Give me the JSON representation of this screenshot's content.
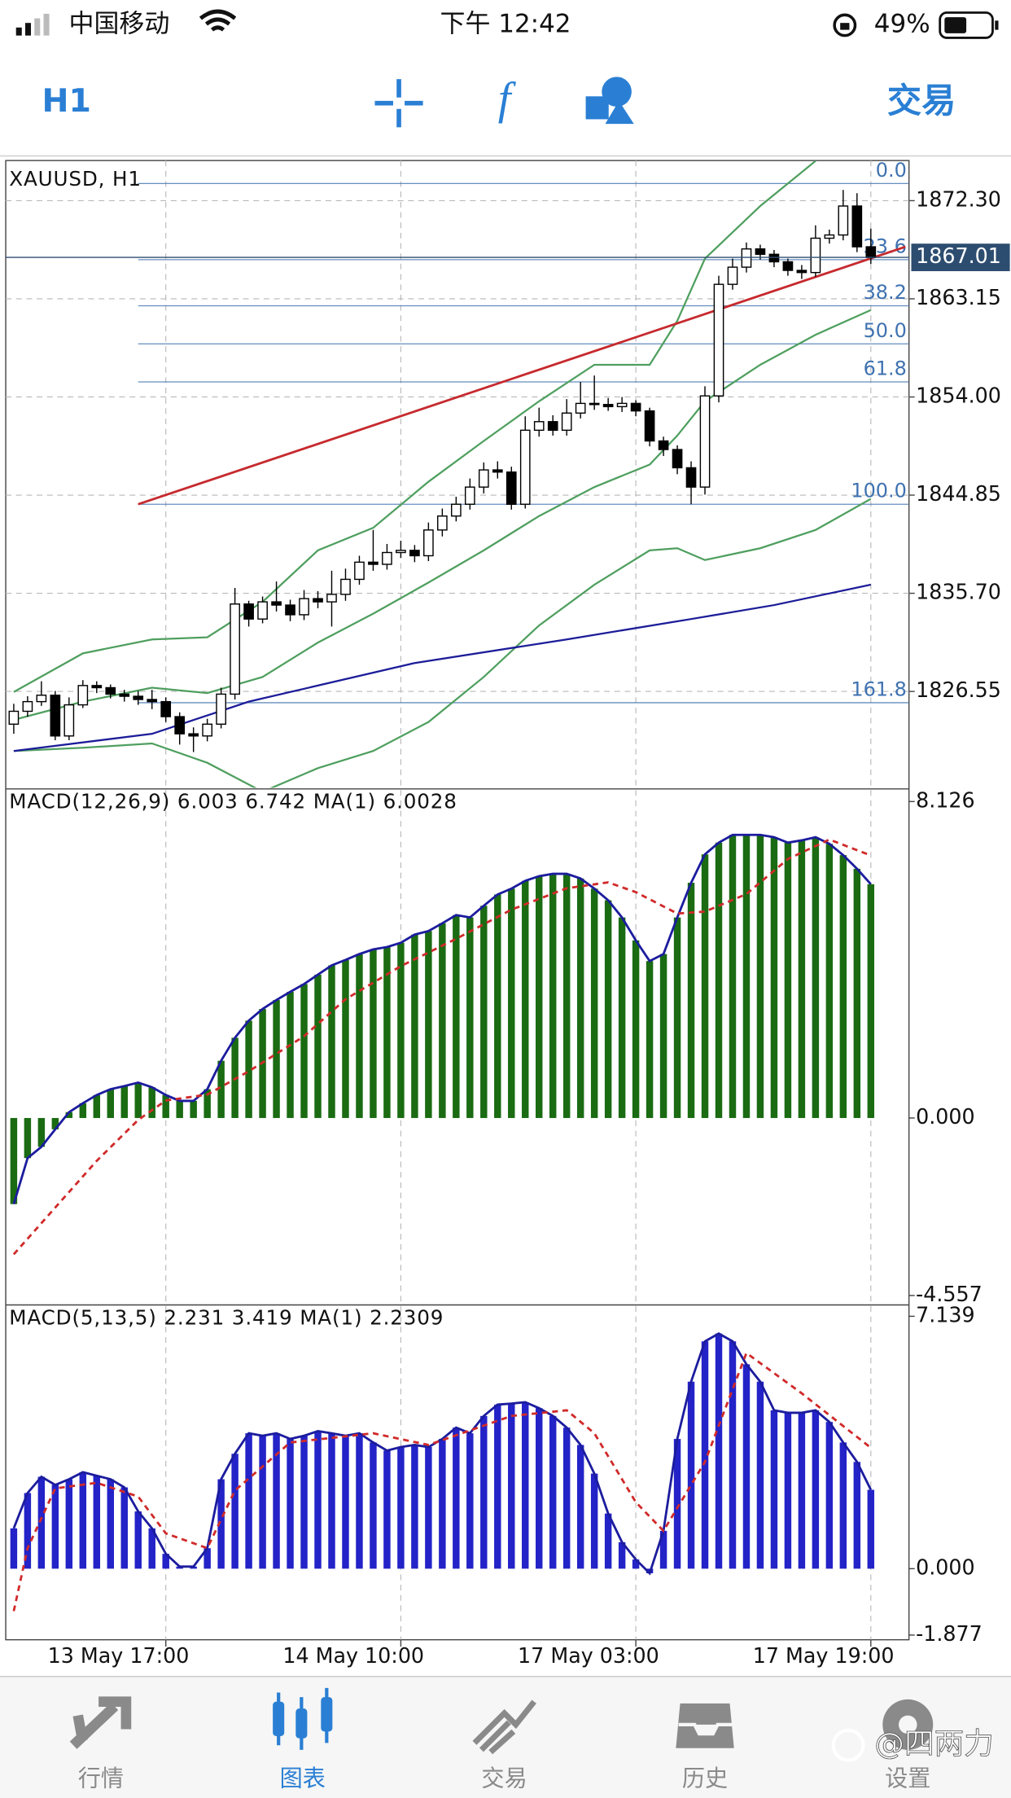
{
  "status_bar": {
    "carrier": "中国移动",
    "time": "下午 12:42",
    "battery": "49%"
  },
  "toolbar": {
    "timeframe": "H1",
    "trade": "交易"
  },
  "chart_data": [
    {
      "type": "candlestick",
      "title": "XAUUSD, H1",
      "categories": [
        null,
        null,
        null,
        null,
        null,
        null,
        null,
        null,
        null,
        null,
        null,
        "13 May 17:00",
        null,
        null,
        null,
        null,
        null,
        null,
        null,
        null,
        null,
        null,
        null,
        null,
        null,
        null,
        null,
        null,
        "14 May 10:00",
        null,
        null,
        null,
        null,
        null,
        null,
        null,
        null,
        null,
        null,
        null,
        null,
        null,
        null,
        null,
        null,
        "17 May 03:00",
        null,
        null,
        null,
        null,
        null,
        null,
        null,
        null,
        null,
        null,
        null,
        null,
        null,
        null,
        null,
        null,
        "17 May 19:00"
      ],
      "open": [
        1823.5,
        1824.7,
        1825.6,
        1826.2,
        1822.4,
        1825.3,
        1827.1,
        1826.9,
        1826.3,
        1826.1,
        1825.8,
        1825.6,
        1824.2,
        1822.6,
        1822.4,
        1823.5,
        1826.3,
        1834.7,
        1833.3,
        1834.9,
        1834.6,
        1833.7,
        1835.2,
        1834.9,
        1835.6,
        1837.0,
        1838.6,
        1838.4,
        1839.5,
        1839.7,
        1839.2,
        1841.6,
        1842.9,
        1844.0,
        1845.6,
        1847.2,
        1847.0,
        1844.0,
        1850.9,
        1851.7,
        1850.9,
        1852.5,
        1853.4,
        1853.3,
        1853.1,
        1853.4,
        1852.7,
        1849.9,
        1849.1,
        1847.4,
        1845.6,
        1854.1,
        1864.5,
        1866.1,
        1867.8,
        1867.3,
        1866.6,
        1865.8,
        1865.6,
        1868.8,
        1869.1,
        1871.8,
        1868.0
      ],
      "high": [
        1825.4,
        1826.1,
        1827.5,
        1826.6,
        1826.0,
        1827.6,
        1827.5,
        1827.2,
        1826.7,
        1826.6,
        1826.7,
        1826.0,
        1824.6,
        1823.2,
        1824.0,
        1826.9,
        1836.2,
        1835.0,
        1835.4,
        1836.8,
        1835.1,
        1836.0,
        1835.9,
        1837.8,
        1838.0,
        1839.2,
        1841.6,
        1840.3,
        1840.6,
        1840.2,
        1842.3,
        1843.6,
        1844.7,
        1846.4,
        1847.9,
        1848.0,
        1847.5,
        1852.2,
        1853.0,
        1852.3,
        1853.8,
        1855.4,
        1856.0,
        1853.9,
        1854.0,
        1853.7,
        1853.0,
        1850.3,
        1849.5,
        1848.0,
        1855.0,
        1865.3,
        1866.9,
        1868.4,
        1868.2,
        1867.7,
        1866.9,
        1866.3,
        1870.0,
        1869.6,
        1873.3,
        1873.0,
        1869.7
      ],
      "low": [
        1822.6,
        1824.2,
        1825.2,
        1822.0,
        1822.0,
        1825.0,
        1826.4,
        1825.9,
        1825.6,
        1825.3,
        1824.9,
        1823.7,
        1821.6,
        1820.9,
        1821.9,
        1823.1,
        1825.8,
        1832.6,
        1832.9,
        1834.0,
        1833.1,
        1833.2,
        1834.3,
        1832.6,
        1835.0,
        1836.5,
        1837.8,
        1837.9,
        1839.0,
        1838.6,
        1838.7,
        1841.0,
        1842.4,
        1843.5,
        1845.0,
        1846.4,
        1843.5,
        1843.6,
        1850.3,
        1850.4,
        1850.4,
        1852.0,
        1852.8,
        1852.7,
        1852.6,
        1852.2,
        1849.4,
        1848.5,
        1846.8,
        1844.0,
        1844.9,
        1853.5,
        1864.0,
        1865.6,
        1866.8,
        1866.1,
        1865.3,
        1865.0,
        1865.2,
        1868.3,
        1868.6,
        1867.5,
        1866.4
      ],
      "close": [
        1824.7,
        1825.6,
        1826.2,
        1822.4,
        1825.3,
        1827.1,
        1826.9,
        1826.3,
        1826.1,
        1825.8,
        1825.6,
        1824.2,
        1822.6,
        1822.4,
        1823.5,
        1826.3,
        1834.7,
        1833.3,
        1834.9,
        1834.6,
        1833.7,
        1835.2,
        1834.9,
        1835.6,
        1837.0,
        1838.6,
        1838.4,
        1839.5,
        1839.7,
        1839.2,
        1841.6,
        1842.9,
        1844.0,
        1845.6,
        1847.2,
        1847.0,
        1844.0,
        1850.9,
        1851.7,
        1850.9,
        1852.5,
        1853.4,
        1853.3,
        1853.1,
        1853.4,
        1852.7,
        1849.9,
        1849.1,
        1847.4,
        1845.6,
        1854.1,
        1864.5,
        1866.1,
        1867.8,
        1867.3,
        1866.6,
        1865.8,
        1865.6,
        1868.8,
        1869.1,
        1871.8,
        1868.0,
        1867.0
      ],
      "up_color": "#ffffff",
      "down_color": "#000000",
      "overlays": [
        {
          "color": "#4f9f5f",
          "x": [
            0,
            5,
            10,
            14,
            18,
            22,
            26,
            30,
            34,
            38,
            42,
            46,
            48,
            50,
            54,
            58
          ],
          "values": [
            1826.5,
            1830.1,
            1831.4,
            1831.6,
            1834.9,
            1839.7,
            1841.8,
            1846.1,
            1849.9,
            1853.6,
            1857.0,
            1857.0,
            1861.1,
            1866.9,
            1871.8,
            1876.0
          ]
        },
        {
          "color": "#4f9f5f",
          "x": [
            0,
            5,
            10,
            14,
            18,
            22,
            26,
            30,
            34,
            38,
            42,
            46,
            48,
            50,
            54,
            58,
            62
          ],
          "values": [
            1823.9,
            1825.6,
            1826.9,
            1826.4,
            1827.9,
            1831.1,
            1833.8,
            1836.7,
            1839.7,
            1842.9,
            1845.6,
            1847.7,
            1850.4,
            1853.6,
            1857.0,
            1859.8,
            1862.1
          ]
        },
        {
          "color": "#4f9f5f",
          "x": [
            0,
            5,
            10,
            14,
            18,
            22,
            26,
            30,
            34,
            38,
            42,
            46,
            48,
            50,
            54,
            58,
            62
          ],
          "values": [
            1821.0,
            1821.3,
            1821.7,
            1819.9,
            1817.2,
            1819.4,
            1821.0,
            1823.7,
            1827.9,
            1832.7,
            1836.5,
            1839.7,
            1839.9,
            1838.8,
            1839.9,
            1841.6,
            1844.5
          ]
        },
        {
          "color": "#1c1c99",
          "x": [
            0,
            10,
            17,
            29,
            40,
            49,
            55,
            62
          ],
          "values": [
            1821.0,
            1822.6,
            1825.6,
            1829.2,
            1831.4,
            1833.3,
            1834.6,
            1836.5
          ]
        },
        {
          "color": "#c62a2e",
          "x": [
            9,
            64.5
          ],
          "values": [
            1844.0,
            1868.0
          ]
        }
      ],
      "fib_labels": [
        "0.0",
        "23.6",
        "38.2",
        "50.0",
        "61.8",
        "100.0",
        "161.8"
      ],
      "fib_values": [
        1873.9,
        1866.8,
        1862.5,
        1858.95,
        1855.4,
        1844.0,
        1825.5
      ],
      "fib_color": "#3f72b0",
      "current_price": 1867.01,
      "ylim": [
        1817.57,
        1876.04
      ],
      "yticks": [
        {
          "value": 1872.3,
          "label": "1872.30"
        },
        1863.15,
        {
          "value": 1854,
          "label": "1854.00"
        },
        1844.85,
        {
          "value": 1835.7,
          "label": "1835.70"
        },
        1826.55
      ],
      "grid": true
    },
    {
      "type": "bar",
      "title": "MACD(12,26,9) 6.003 6.742 MA(1) 6.0028",
      "histogram": {
        "color": "#1a6b12",
        "line_color": "#1c1c9e",
        "values": [
          -2.21,
          -1.03,
          -0.74,
          -0.29,
          0.15,
          0.38,
          0.59,
          0.74,
          0.82,
          0.91,
          0.79,
          0.59,
          0.44,
          0.44,
          0.74,
          1.47,
          2.06,
          2.5,
          2.8,
          3.03,
          3.24,
          3.44,
          3.68,
          3.92,
          4.06,
          4.21,
          4.33,
          4.39,
          4.5,
          4.71,
          4.8,
          5.0,
          5.21,
          5.15,
          5.45,
          5.74,
          5.89,
          6.09,
          6.21,
          6.27,
          6.27,
          6.15,
          5.89,
          5.59,
          5.15,
          4.56,
          4.03,
          4.21,
          5.15,
          6.04,
          6.77,
          7.07,
          7.27,
          7.27,
          7.27,
          7.21,
          7.07,
          7.13,
          7.21,
          7.04,
          6.75,
          6.4,
          6.003
        ]
      },
      "signal": {
        "color": "#d02a2a",
        "x": [
          0,
          3,
          6,
          9,
          11,
          14,
          17,
          21,
          24,
          28,
          32,
          36,
          40,
          43,
          45,
          48,
          50,
          53,
          56,
          59,
          62
        ],
        "values": [
          -3.5,
          -2.3,
          -1.1,
          -0.05,
          0.45,
          0.6,
          1.2,
          2.1,
          3.05,
          3.9,
          4.6,
          5.35,
          5.9,
          6.05,
          5.8,
          5.25,
          5.3,
          5.75,
          6.65,
          7.15,
          6.742
        ]
      },
      "ylim": [
        -4.77,
        8.45
      ],
      "yticks": [
        8.126,
        {
          "value": 0,
          "label": "0.000"
        },
        -4.557
      ]
    },
    {
      "type": "bar",
      "title": "MACD(5,13,5) 2.231 3.419 MA(1) 2.2309",
      "histogram": {
        "color": "#2323c8",
        "line_color": "#1c1c9e",
        "values": [
          1.14,
          2.14,
          2.6,
          2.37,
          2.53,
          2.73,
          2.63,
          2.53,
          2.3,
          1.62,
          1.14,
          0.42,
          0.06,
          0.06,
          0.58,
          2.53,
          3.25,
          3.83,
          3.76,
          3.83,
          3.67,
          3.76,
          3.89,
          3.83,
          3.76,
          3.83,
          3.57,
          3.34,
          3.44,
          3.5,
          3.44,
          3.67,
          3.99,
          3.83,
          4.32,
          4.64,
          4.67,
          4.71,
          4.54,
          4.32,
          3.99,
          3.5,
          2.69,
          1.56,
          0.75,
          0.26,
          -0.13,
          1.07,
          3.67,
          5.29,
          6.43,
          6.65,
          6.43,
          5.78,
          5.29,
          4.48,
          4.41,
          4.41,
          4.48,
          4.15,
          3.57,
          3.02,
          2.231
        ]
      },
      "signal": {
        "color": "#d02a2a",
        "x": [
          0,
          1,
          3,
          6,
          9,
          11,
          14,
          16,
          20,
          26,
          30,
          36,
          40,
          42,
          45,
          47,
          50,
          53,
          57,
          62
        ],
        "values": [
          -1.2,
          0.58,
          2.27,
          2.43,
          2.04,
          1.0,
          0.58,
          2.21,
          3.57,
          3.83,
          3.5,
          4.32,
          4.48,
          3.83,
          1.88,
          1.07,
          3.02,
          6.1,
          4.96,
          3.419
        ]
      },
      "ylim": [
        -2.01,
        7.46
      ],
      "yticks": [
        7.139,
        {
          "value": 0,
          "label": "0.000"
        },
        -1.877
      ]
    }
  ],
  "tabs": [
    "行情",
    "图表",
    "交易",
    "历史",
    "设置"
  ],
  "watermark": "@四两力"
}
